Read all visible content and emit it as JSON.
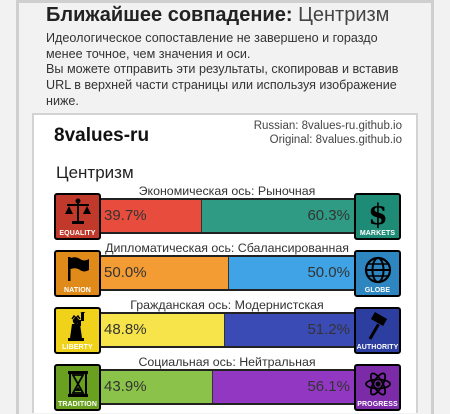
{
  "header": {
    "title_bold": "Ближайшее совпадение:",
    "title_value": "Центризм"
  },
  "paragraphs": {
    "p1": "Идеологическое сопоставление не завершено и гораздо менее точное, чем значения и оси.",
    "p2": "Вы можете отправить эти результаты, скопировав и вставив URL в верхней части страницы или используя изображение ниже."
  },
  "card": {
    "site_name": "8values-ru",
    "credit_russian": "Russian: 8values-ru.github.io",
    "credit_original": "Original: 8values.github.io",
    "ideology": "Центризм"
  },
  "axes": [
    {
      "title": "Экономическая ось: Рыночная",
      "left_icon": "scales-icon",
      "left_label": "EQUALITY",
      "left_bg": "#c0392b",
      "right_icon": "dollar-icon",
      "right_label": "MARKETS",
      "right_bg": "#1e8b77",
      "left_value": 39.7,
      "left_text": "39.7%",
      "left_color": "#e74c3c",
      "right_value": 60.3,
      "right_text": "60.3%",
      "right_color": "#2f9b84"
    },
    {
      "title": "Дипломатическая ось: Сбалансированная",
      "left_icon": "flag-icon",
      "left_label": "NATION",
      "left_bg": "#e08a1a",
      "right_icon": "globe-icon",
      "right_label": "GLOBE",
      "right_bg": "#2e86c1",
      "left_value": 50.0,
      "left_text": "50.0%",
      "left_color": "#f39c33",
      "right_value": 50.0,
      "right_text": "50.0%",
      "right_color": "#3fa3e6"
    },
    {
      "title": "Гражданская ось: Модернистская",
      "left_icon": "liberty-statue-icon",
      "left_label": "LIBERTY",
      "left_bg": "#f1d21a",
      "right_icon": "gavel-icon",
      "right_label": "AUTHORITY",
      "right_bg": "#2c3ea0",
      "left_value": 48.8,
      "left_text": "48.8%",
      "left_color": "#f7e44a",
      "right_value": 51.2,
      "right_text": "51.2%",
      "right_color": "#3b4bb5"
    },
    {
      "title": "Социальная ось: Нейтральная",
      "left_icon": "hourglass-icon",
      "left_label": "TRADITION",
      "left_bg": "#6aa020",
      "right_icon": "atom-icon",
      "right_label": "PROGRESS",
      "right_bg": "#7b2aa8",
      "left_value": 43.9,
      "left_text": "43.9%",
      "left_color": "#8bc34a",
      "right_value": 56.1,
      "right_text": "56.1%",
      "right_color": "#9237c2"
    }
  ]
}
